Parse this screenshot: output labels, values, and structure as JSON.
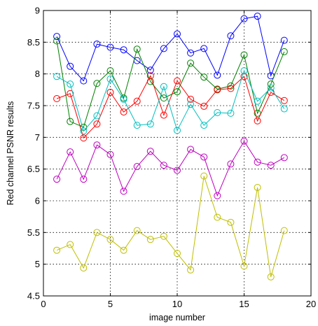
{
  "chart_data": {
    "type": "line",
    "title": "",
    "xlabel": "image number",
    "ylabel": "Red channel PSNR results",
    "xlim": [
      0,
      20
    ],
    "ylim": [
      4.5,
      9
    ],
    "x_ticks": [
      0,
      5,
      10,
      15,
      20
    ],
    "y_ticks": [
      4.5,
      5,
      5.5,
      6,
      6.5,
      7,
      7.5,
      8,
      8.5,
      9
    ],
    "x_tick_labels": [
      "0",
      "5",
      "10",
      "15",
      "20"
    ],
    "y_tick_labels": [
      "4.5",
      "5",
      "5.5",
      "6",
      "6.5",
      "7",
      "7.5",
      "8",
      "8.5",
      "9"
    ],
    "grid": true,
    "marker": "circle",
    "x": [
      1,
      2,
      3,
      4,
      5,
      6,
      7,
      8,
      9,
      10,
      11,
      12,
      13,
      14,
      15,
      16,
      17,
      18
    ],
    "series": [
      {
        "color": "#0000ff",
        "values": [
          8.59,
          8.12,
          7.89,
          8.47,
          8.42,
          8.38,
          8.21,
          8.06,
          8.4,
          8.63,
          8.33,
          8.4,
          7.98,
          8.6,
          8.87,
          8.91,
          7.97,
          8.53
        ]
      },
      {
        "color": "#008000",
        "values": [
          8.52,
          7.25,
          7.16,
          7.85,
          8.05,
          7.62,
          8.39,
          7.88,
          7.62,
          7.72,
          8.17,
          7.95,
          7.76,
          7.81,
          8.3,
          7.38,
          7.84,
          8.35
        ]
      },
      {
        "color": "#ff0000",
        "values": [
          7.61,
          7.69,
          6.99,
          7.21,
          7.71,
          7.4,
          7.57,
          7.97,
          7.35,
          7.89,
          7.6,
          7.49,
          7.75,
          7.77,
          7.96,
          7.26,
          7.71,
          7.58
        ]
      },
      {
        "color": "#00bfbf",
        "values": [
          7.96,
          7.84,
          7.1,
          7.34,
          7.92,
          7.6,
          7.19,
          7.21,
          7.8,
          7.11,
          7.52,
          7.19,
          7.39,
          7.38,
          8.05,
          7.57,
          7.78,
          7.45
        ]
      },
      {
        "color": "#bf00bf",
        "values": [
          6.34,
          6.77,
          6.34,
          6.88,
          6.73,
          6.15,
          6.54,
          6.78,
          6.56,
          6.48,
          6.81,
          6.69,
          6.08,
          6.58,
          6.94,
          6.61,
          6.56,
          6.68
        ]
      },
      {
        "color": "#bfbf00",
        "values": [
          5.22,
          5.31,
          4.94,
          5.5,
          5.39,
          5.22,
          5.53,
          5.39,
          5.44,
          5.17,
          4.91,
          6.39,
          5.74,
          5.66,
          4.97,
          6.21,
          4.8,
          5.53
        ]
      }
    ]
  }
}
